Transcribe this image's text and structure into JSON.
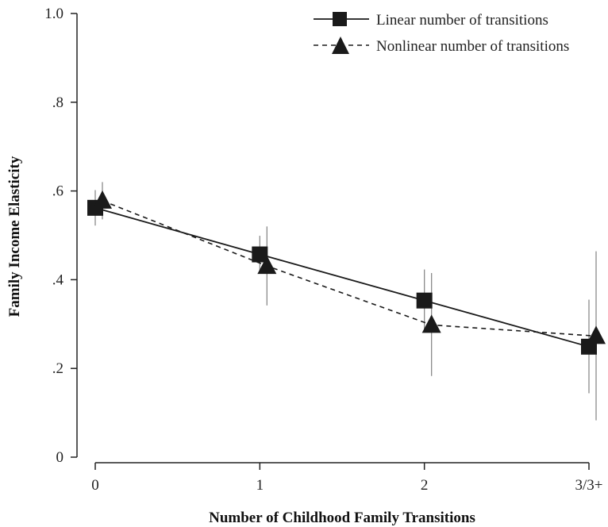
{
  "chart_data": {
    "type": "line",
    "title": "",
    "xlabel": "Number of Childhood Family Transitions",
    "ylabel": "Family Income Elasticity",
    "categories": [
      "0",
      "1",
      "2",
      "3/3+"
    ],
    "x": [
      0,
      1,
      2,
      3
    ],
    "ylim": [
      0,
      1.0
    ],
    "yticks": [
      0,
      0.2,
      0.4,
      0.6,
      0.8,
      1.0
    ],
    "ytick_labels": [
      "0",
      ".2",
      ".4",
      ".6",
      ".8",
      "1.0"
    ],
    "grid": false,
    "legend_position": "top-right",
    "series": [
      {
        "name": "Linear number of transitions",
        "marker": "square",
        "line_style": "solid",
        "color": "#1a1a1a",
        "values": [
          0.562,
          0.457,
          0.353,
          0.249
        ],
        "ci_low": [
          0.522,
          0.415,
          0.283,
          0.144
        ],
        "ci_high": [
          0.602,
          0.499,
          0.423,
          0.355
        ]
      },
      {
        "name": "Nonlinear number of transitions",
        "marker": "triangle",
        "line_style": "dashed",
        "color": "#1a1a1a",
        "values": [
          0.578,
          0.431,
          0.298,
          0.273
        ],
        "ci_low": [
          0.536,
          0.342,
          0.183,
          0.083
        ],
        "ci_high": [
          0.62,
          0.52,
          0.415,
          0.464
        ]
      }
    ]
  }
}
